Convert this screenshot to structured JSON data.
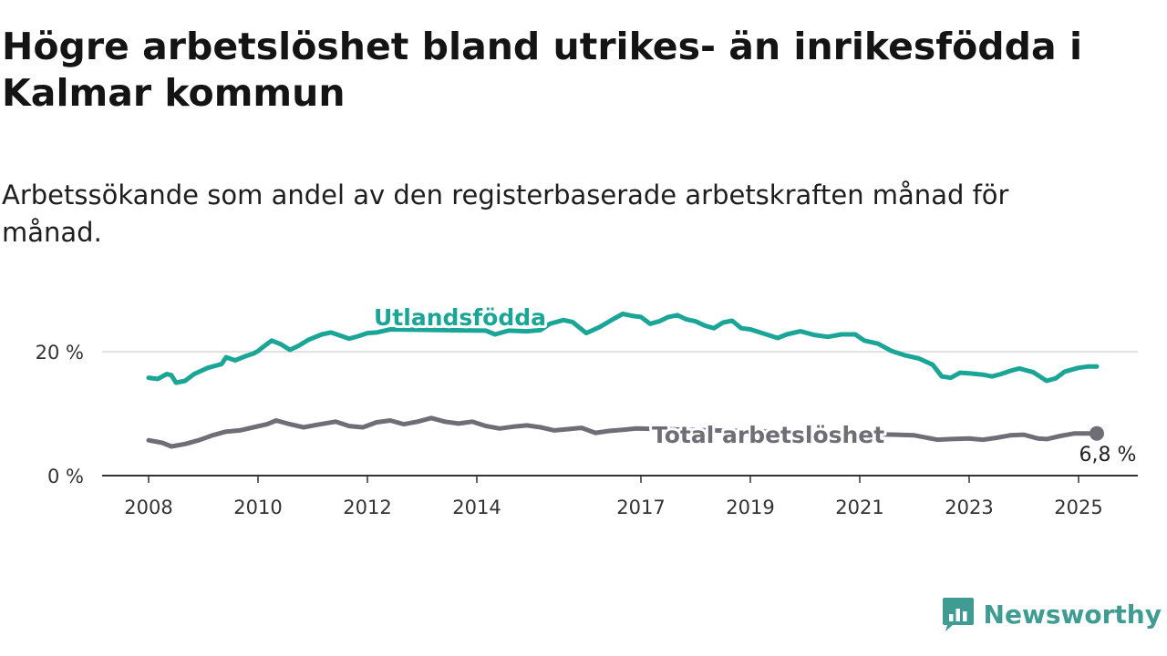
{
  "title": "Högre arbetslöshet bland utrikes- än inrikesfödda i Kalmar kommun",
  "subtitle": "Arbetssökande som andel av den registerbaserade arbetskraften månad för månad.",
  "brand": {
    "name": "Newsworthy",
    "icon": "newsworthy-logo-icon",
    "color": "#3e9c93"
  },
  "chart_data": {
    "type": "line",
    "title": "Högre arbetslöshet bland utrikes- än inrikesfödda i Kalmar kommun",
    "subtitle": "Arbetssökande som andel av den registerbaserade arbetskraften månad för månad.",
    "x_range": [
      "2008-01",
      "2025-12"
    ],
    "ylim": [
      0,
      30
    ],
    "y_ticks": [
      {
        "value": 0,
        "label": "0 %"
      },
      {
        "value": 20,
        "label": "20 %"
      }
    ],
    "x_ticks": [
      {
        "value": "2008-01",
        "label": "2008"
      },
      {
        "value": "2010-01",
        "label": "2010"
      },
      {
        "value": "2012-01",
        "label": "2012"
      },
      {
        "value": "2014-01",
        "label": "2014"
      },
      {
        "value": "2017-01",
        "label": "2017"
      },
      {
        "value": "2019-01",
        "label": "2019"
      },
      {
        "value": "2021-01",
        "label": "2021"
      },
      {
        "value": "2023-01",
        "label": "2023"
      },
      {
        "value": "2025-01",
        "label": "2025"
      }
    ],
    "grid": "horizontal at 20 %",
    "series": [
      {
        "name": "Utlandsfödda",
        "color": "#1aa596",
        "points": [
          [
            "2008-01",
            15.8
          ],
          [
            "2008-03",
            15.6
          ],
          [
            "2008-05",
            16.4
          ],
          [
            "2008-06",
            16.2
          ],
          [
            "2008-07",
            15.0
          ],
          [
            "2008-09",
            15.3
          ],
          [
            "2008-11",
            16.4
          ],
          [
            "2009-02",
            17.4
          ],
          [
            "2009-05",
            18.0
          ],
          [
            "2009-06",
            19.1
          ],
          [
            "2009-08",
            18.6
          ],
          [
            "2009-10",
            19.2
          ],
          [
            "2009-12",
            19.7
          ],
          [
            "2010-01",
            20.1
          ],
          [
            "2010-02",
            20.7
          ],
          [
            "2010-04",
            21.8
          ],
          [
            "2010-06",
            21.2
          ],
          [
            "2010-08",
            20.3
          ],
          [
            "2010-10",
            21.0
          ],
          [
            "2010-12",
            21.9
          ],
          [
            "2011-03",
            22.8
          ],
          [
            "2011-05",
            23.1
          ],
          [
            "2011-07",
            22.6
          ],
          [
            "2011-09",
            22.1
          ],
          [
            "2011-11",
            22.5
          ],
          [
            "2012-01",
            23.0
          ],
          [
            "2012-03",
            23.1
          ],
          [
            "2012-06",
            23.6
          ],
          [
            "2014-03",
            23.4
          ],
          [
            "2014-05",
            22.8
          ],
          [
            "2014-08",
            23.4
          ],
          [
            "2014-12",
            23.3
          ],
          [
            "2015-03",
            23.5
          ],
          [
            "2015-05",
            24.5
          ],
          [
            "2015-08",
            25.1
          ],
          [
            "2015-10",
            24.8
          ],
          [
            "2016-01",
            23.0
          ],
          [
            "2016-04",
            24.0
          ],
          [
            "2016-07",
            25.3
          ],
          [
            "2016-09",
            26.1
          ],
          [
            "2016-11",
            25.8
          ],
          [
            "2017-01",
            25.6
          ],
          [
            "2017-03",
            24.5
          ],
          [
            "2017-05",
            24.9
          ],
          [
            "2017-07",
            25.6
          ],
          [
            "2017-09",
            25.9
          ],
          [
            "2017-11",
            25.2
          ],
          [
            "2018-01",
            24.9
          ],
          [
            "2018-03",
            24.2
          ],
          [
            "2018-05",
            23.8
          ],
          [
            "2018-07",
            24.7
          ],
          [
            "2018-09",
            25.0
          ],
          [
            "2018-11",
            23.8
          ],
          [
            "2019-01",
            23.6
          ],
          [
            "2019-04",
            22.9
          ],
          [
            "2019-07",
            22.2
          ],
          [
            "2019-09",
            22.8
          ],
          [
            "2019-12",
            23.3
          ],
          [
            "2020-03",
            22.7
          ],
          [
            "2020-06",
            22.4
          ],
          [
            "2020-09",
            22.8
          ],
          [
            "2020-12",
            22.8
          ],
          [
            "2021-02",
            21.8
          ],
          [
            "2021-05",
            21.3
          ],
          [
            "2021-08",
            20.1
          ],
          [
            "2021-11",
            19.4
          ],
          [
            "2022-02",
            18.9
          ],
          [
            "2022-05",
            17.9
          ],
          [
            "2022-07",
            16.0
          ],
          [
            "2022-09",
            15.8
          ],
          [
            "2022-11",
            16.6
          ],
          [
            "2023-01",
            16.5
          ],
          [
            "2023-04",
            16.3
          ],
          [
            "2023-06",
            16.0
          ],
          [
            "2023-08",
            16.4
          ],
          [
            "2023-10",
            16.9
          ],
          [
            "2023-12",
            17.3
          ],
          [
            "2024-03",
            16.7
          ],
          [
            "2024-06",
            15.3
          ],
          [
            "2024-08",
            15.7
          ],
          [
            "2024-10",
            16.8
          ],
          [
            "2025-01",
            17.4
          ],
          [
            "2025-03",
            17.6
          ],
          [
            "2025-05",
            17.6
          ]
        ]
      },
      {
        "name": "Total arbetslöshet",
        "color": "#6f6e76",
        "end_label": "6,8 %",
        "points": [
          [
            "2008-01",
            5.7
          ],
          [
            "2008-04",
            5.3
          ],
          [
            "2008-06",
            4.7
          ],
          [
            "2008-09",
            5.1
          ],
          [
            "2008-12",
            5.7
          ],
          [
            "2009-03",
            6.5
          ],
          [
            "2009-06",
            7.1
          ],
          [
            "2009-09",
            7.3
          ],
          [
            "2009-12",
            7.8
          ],
          [
            "2010-03",
            8.3
          ],
          [
            "2010-05",
            8.9
          ],
          [
            "2010-08",
            8.3
          ],
          [
            "2010-11",
            7.8
          ],
          [
            "2011-02",
            8.2
          ],
          [
            "2011-06",
            8.7
          ],
          [
            "2011-09",
            8.0
          ],
          [
            "2011-12",
            7.8
          ],
          [
            "2012-03",
            8.6
          ],
          [
            "2012-06",
            8.9
          ],
          [
            "2012-09",
            8.3
          ],
          [
            "2012-12",
            8.7
          ],
          [
            "2013-03",
            9.3
          ],
          [
            "2013-06",
            8.7
          ],
          [
            "2013-09",
            8.4
          ],
          [
            "2013-12",
            8.7
          ],
          [
            "2014-03",
            8.0
          ],
          [
            "2014-06",
            7.6
          ],
          [
            "2014-09",
            7.9
          ],
          [
            "2014-12",
            8.1
          ],
          [
            "2015-03",
            7.8
          ],
          [
            "2015-06",
            7.3
          ],
          [
            "2015-09",
            7.5
          ],
          [
            "2015-12",
            7.7
          ],
          [
            "2016-03",
            6.9
          ],
          [
            "2016-06",
            7.2
          ],
          [
            "2016-09",
            7.4
          ],
          [
            "2016-12",
            7.6
          ],
          [
            "2021-09",
            6.6
          ],
          [
            "2022-01",
            6.5
          ],
          [
            "2022-06",
            5.8
          ],
          [
            "2022-09",
            5.9
          ],
          [
            "2023-01",
            6.0
          ],
          [
            "2023-04",
            5.8
          ],
          [
            "2023-07",
            6.1
          ],
          [
            "2023-10",
            6.5
          ],
          [
            "2024-01",
            6.6
          ],
          [
            "2024-04",
            6.0
          ],
          [
            "2024-06",
            5.9
          ],
          [
            "2024-09",
            6.4
          ],
          [
            "2024-12",
            6.8
          ],
          [
            "2025-05",
            6.8
          ]
        ]
      }
    ]
  }
}
